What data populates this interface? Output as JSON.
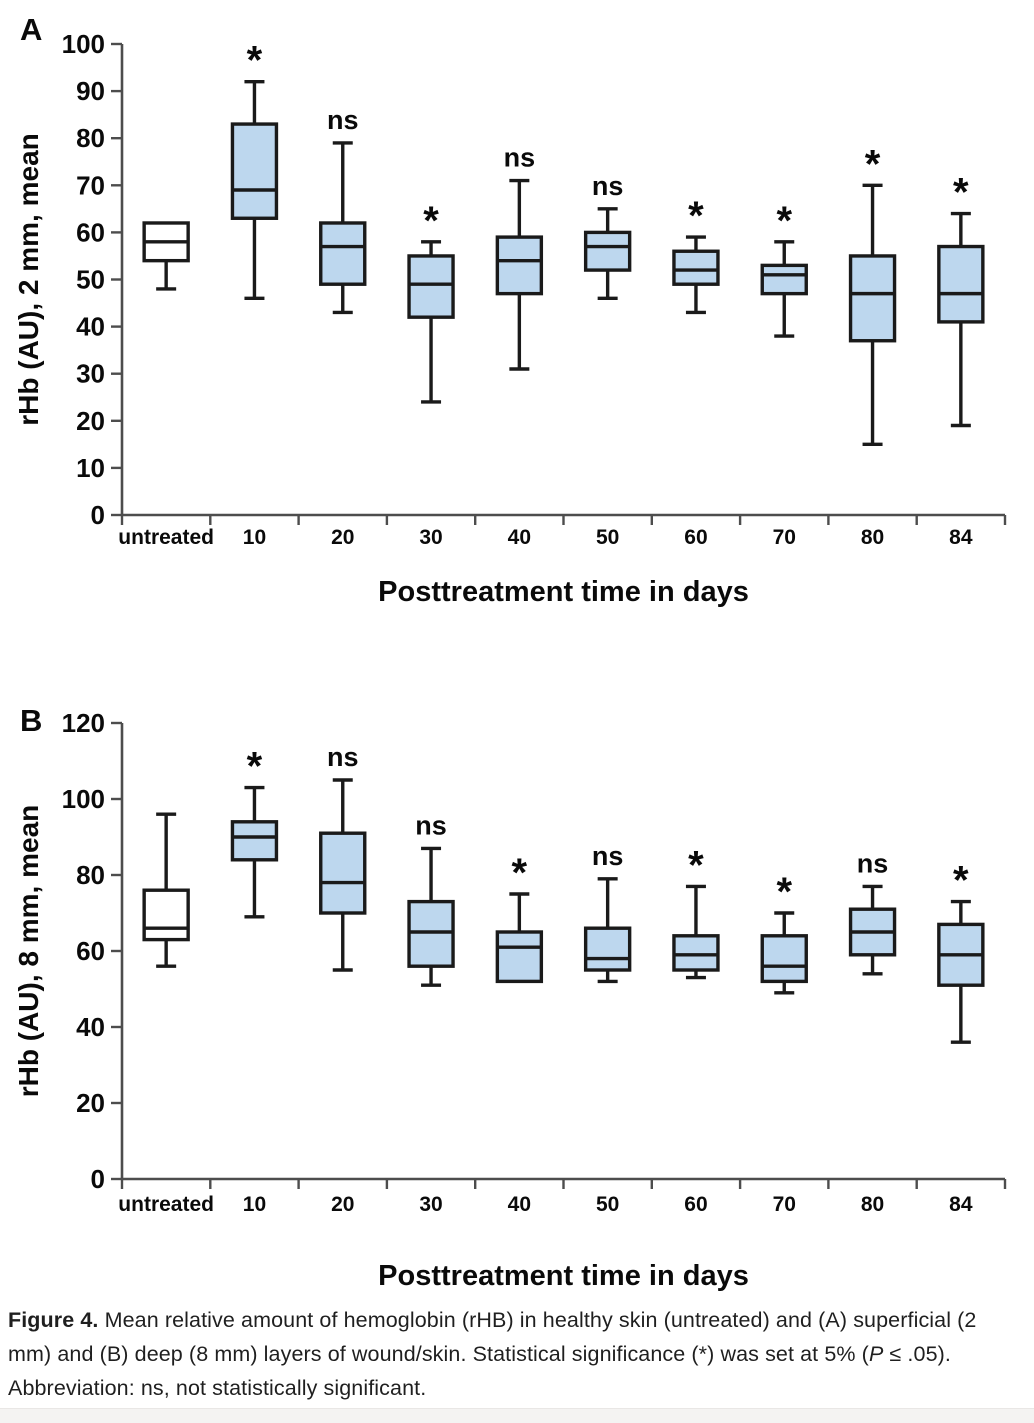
{
  "caption": {
    "label": "Figure 4.",
    "part1": " Mean relative amount of hemoglobin (rHB) in healthy skin (untreated) and (A) superficial (2 mm) and (B) deep (8 mm) layers of wound/skin. Statistical significance (*) was set at 5% (",
    "p_italic": "P",
    "part2": " ≤ .05). Abbreviation: ns, not statistically significant."
  },
  "colors": {
    "box_fill": "#bdd7ee",
    "untreated_fill": "#ffffff",
    "box_stroke": "#1a1a1a",
    "axis": "#4d4d4d",
    "tick_text": "#0a0a0a",
    "marker_text": "#0a0a0a"
  },
  "chart_data": [
    {
      "type": "boxplot",
      "panel_label": "A",
      "ylabel": "rHb (AU), 2 mm, mean",
      "xlabel": "Posttreatment time in days",
      "ylim": [
        0,
        100
      ],
      "ytick_step": 10,
      "grid": false,
      "categories": [
        "untreated",
        "10",
        "20",
        "30",
        "40",
        "50",
        "60",
        "70",
        "80",
        "84"
      ],
      "boxes": [
        {
          "category": "untreated",
          "min": 48,
          "q1": 54,
          "median": 58,
          "q3": 62,
          "max": null,
          "significance": null,
          "fill": "#ffffff"
        },
        {
          "category": "10",
          "min": 46,
          "q1": 63,
          "median": 69,
          "q3": 83,
          "max": 92,
          "significance": "*",
          "fill": "#bdd7ee"
        },
        {
          "category": "20",
          "min": 43,
          "q1": 49,
          "median": 57,
          "q3": 62,
          "max": 79,
          "significance": "ns",
          "fill": "#bdd7ee"
        },
        {
          "category": "30",
          "min": 24,
          "q1": 42,
          "median": 49,
          "q3": 55,
          "max": 58,
          "significance": "*",
          "fill": "#bdd7ee"
        },
        {
          "category": "40",
          "min": 31,
          "q1": 47,
          "median": 54,
          "q3": 59,
          "max": 71,
          "significance": "ns",
          "fill": "#bdd7ee"
        },
        {
          "category": "50",
          "min": 46,
          "q1": 52,
          "median": 57,
          "q3": 60,
          "max": 65,
          "significance": "ns",
          "fill": "#bdd7ee"
        },
        {
          "category": "60",
          "min": 43,
          "q1": 49,
          "median": 52,
          "q3": 56,
          "max": 59,
          "significance": "*",
          "fill": "#bdd7ee"
        },
        {
          "category": "70",
          "min": 38,
          "q1": 47,
          "median": 51,
          "q3": 53,
          "max": 58,
          "significance": "*",
          "fill": "#bdd7ee"
        },
        {
          "category": "80",
          "min": 15,
          "q1": 37,
          "median": 47,
          "q3": 55,
          "max": 70,
          "significance": "*",
          "fill": "#bdd7ee"
        },
        {
          "category": "84",
          "min": 19,
          "q1": 41,
          "median": 47,
          "q3": 57,
          "max": 64,
          "significance": "*",
          "fill": "#bdd7ee"
        }
      ]
    },
    {
      "type": "boxplot",
      "panel_label": "B",
      "ylabel": "rHb (AU), 8 mm, mean",
      "xlabel": "Posttreatment time in days",
      "ylim": [
        0,
        120
      ],
      "ytick_step": 20,
      "grid": false,
      "categories": [
        "untreated",
        "10",
        "20",
        "30",
        "40",
        "50",
        "60",
        "70",
        "80",
        "84"
      ],
      "boxes": [
        {
          "category": "untreated",
          "min": 56,
          "q1": 63,
          "median": 66,
          "q3": 76,
          "max": 96,
          "significance": null,
          "fill": "#ffffff"
        },
        {
          "category": "10",
          "min": 69,
          "q1": 84,
          "median": 90,
          "q3": 94,
          "max": 103,
          "significance": "*",
          "fill": "#bdd7ee"
        },
        {
          "category": "20",
          "min": 55,
          "q1": 70,
          "median": 78,
          "q3": 91,
          "max": 105,
          "significance": "ns",
          "fill": "#bdd7ee"
        },
        {
          "category": "30",
          "min": 51,
          "q1": 56,
          "median": 65,
          "q3": 73,
          "max": 87,
          "significance": "ns",
          "fill": "#bdd7ee"
        },
        {
          "category": "40",
          "min": null,
          "q1": 52,
          "median": 61,
          "q3": 65,
          "max": 75,
          "significance": "*",
          "fill": "#bdd7ee"
        },
        {
          "category": "50",
          "min": 52,
          "q1": 55,
          "median": 58,
          "q3": 66,
          "max": 79,
          "significance": "ns",
          "fill": "#bdd7ee"
        },
        {
          "category": "60",
          "min": 53,
          "q1": 55,
          "median": 59,
          "q3": 64,
          "max": 77,
          "significance": "*",
          "fill": "#bdd7ee"
        },
        {
          "category": "70",
          "min": 49,
          "q1": 52,
          "median": 56,
          "q3": 64,
          "max": 70,
          "significance": "*",
          "fill": "#bdd7ee"
        },
        {
          "category": "80",
          "min": 54,
          "q1": 59,
          "median": 65,
          "q3": 71,
          "max": 77,
          "significance": "ns",
          "fill": "#bdd7ee"
        },
        {
          "category": "84",
          "min": 36,
          "q1": 51,
          "median": 59,
          "q3": 67,
          "max": 73,
          "significance": "*",
          "fill": "#bdd7ee"
        }
      ]
    }
  ]
}
